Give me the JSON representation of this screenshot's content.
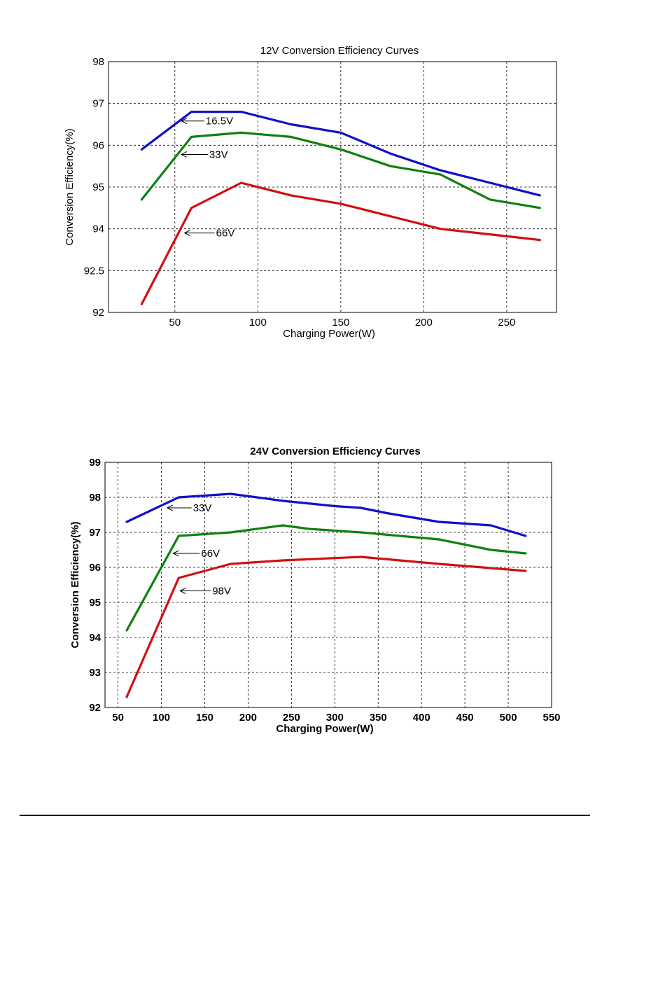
{
  "chart_data": [
    {
      "type": "line",
      "title": "12V Conversion Efficiency Curves",
      "xlabel": "Charging Power(W)",
      "ylabel": "Conversion Efficiency(%)",
      "xlim": [
        10,
        280
      ],
      "x_ticks": [
        50,
        100,
        150,
        200,
        250
      ],
      "y_ticks": [
        92,
        92.5,
        94,
        95,
        96,
        97,
        98
      ],
      "y_tick_labels": [
        "92",
        "92.5",
        "94",
        "95",
        "96",
        "97",
        "98"
      ],
      "y_scale": "ordinal-ticks",
      "grid": true,
      "series": [
        {
          "name": "16.5V",
          "color": "#1010c8",
          "x": [
            30,
            60,
            90,
            120,
            150,
            180,
            210,
            240,
            270
          ],
          "y": [
            95.9,
            96.8,
            96.8,
            96.5,
            96.3,
            95.8,
            95.4,
            95.1,
            94.8
          ]
        },
        {
          "name": "33V",
          "color": "#108010",
          "x": [
            30,
            60,
            90,
            120,
            150,
            180,
            210,
            240,
            270
          ],
          "y": [
            94.7,
            96.2,
            96.3,
            96.2,
            95.9,
            95.5,
            95.3,
            94.7,
            94.5
          ]
        },
        {
          "name": "66V",
          "color": "#d01010",
          "x": [
            30,
            60,
            90,
            120,
            150,
            180,
            210,
            240,
            270
          ],
          "y": [
            92.1,
            94.5,
            95.1,
            94.8,
            94.6,
            94.3,
            94.0,
            93.8,
            93.6
          ]
        }
      ],
      "annotations": [
        {
          "label": "16.5V",
          "x": 53,
          "y": 96.58
        },
        {
          "label": "33V",
          "x": 53,
          "y": 95.78
        },
        {
          "label": "66V",
          "x": 55,
          "y": 93.85
        }
      ]
    },
    {
      "type": "line",
      "title": "24V Conversion Efficiency Curves",
      "xlabel": "Charging Power(W)",
      "ylabel": "Conversion Efficiency(%)",
      "xlim": [
        35,
        550
      ],
      "ylim": [
        92,
        99
      ],
      "x_ticks": [
        50,
        100,
        150,
        200,
        250,
        300,
        350,
        400,
        450,
        500,
        550
      ],
      "y_ticks": [
        92,
        93,
        94,
        95,
        96,
        97,
        98,
        99
      ],
      "grid": true,
      "series": [
        {
          "name": "33V",
          "color": "#1010c8",
          "x": [
            60,
            120,
            180,
            240,
            300,
            330,
            360,
            420,
            480,
            520
          ],
          "y": [
            97.3,
            98.0,
            98.1,
            97.9,
            97.75,
            97.7,
            97.55,
            97.3,
            97.2,
            96.9
          ]
        },
        {
          "name": "66V",
          "color": "#108010",
          "x": [
            60,
            120,
            180,
            240,
            270,
            330,
            420,
            480,
            520
          ],
          "y": [
            94.2,
            96.9,
            97.0,
            97.2,
            97.1,
            97.0,
            96.8,
            96.5,
            96.4
          ]
        },
        {
          "name": "98V",
          "color": "#d01010",
          "x": [
            60,
            120,
            180,
            240,
            330,
            420,
            520
          ],
          "y": [
            92.3,
            95.7,
            96.1,
            96.2,
            96.3,
            96.1,
            95.9
          ]
        }
      ],
      "annotations": [
        {
          "label": "33V",
          "x": 105,
          "y": 97.7
        },
        {
          "label": "66V",
          "x": 112,
          "y": 96.4
        },
        {
          "label": "98V",
          "x": 120,
          "y": 95.33
        }
      ]
    }
  ]
}
